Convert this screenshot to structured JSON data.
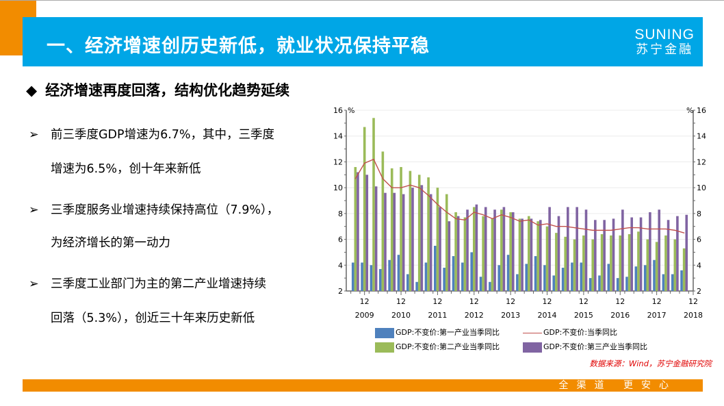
{
  "header": {
    "title": "一、经济增速创历史新低，就业状况保持平稳",
    "logo_en": "SUNING",
    "logo_cn": "苏宁金融"
  },
  "section_heading": "经济增速再度回落，结构优化趋势延续",
  "bullets": [
    {
      "line1": "前三季度GDP增速为6.7%，其中，三季度",
      "line2": "增速为6.5%，创十年来新低"
    },
    {
      "line1": "三季度服务业增速持续保持高位（7.9%），",
      "line2": "为经济增长的第一动力"
    },
    {
      "line1": "三季度工业部门为主的第二产业增速持续",
      "line2": "回落（5.3%），创近三十年来历史新低"
    }
  ],
  "icons": {
    "heading": "diamond-bullet-icon",
    "bullets": "arrow-bullet-icon"
  },
  "chart_data": {
    "type": "bar+line",
    "unit_left": "%",
    "unit_right": "%",
    "ylim": [
      2,
      16
    ],
    "yticks": [
      2,
      4,
      6,
      8,
      10,
      12,
      14,
      16
    ],
    "xtick_labels": [
      {
        "month": "12",
        "year": "2009"
      },
      {
        "month": "12",
        "year": "2010"
      },
      {
        "month": "12",
        "year": "2011"
      },
      {
        "month": "12",
        "year": "2012"
      },
      {
        "month": "12",
        "year": "2013"
      },
      {
        "month": "12",
        "year": "2014"
      },
      {
        "month": "12",
        "year": "2015"
      },
      {
        "month": "12",
        "year": "2016"
      },
      {
        "month": "12",
        "year": "2017"
      },
      {
        "month": "12",
        "year": "2018"
      }
    ],
    "x": [
      "2009Q3",
      "2009Q4",
      "2010Q1",
      "2010Q2",
      "2010Q3",
      "2010Q4",
      "2011Q1",
      "2011Q2",
      "2011Q3",
      "2011Q4",
      "2012Q1",
      "2012Q2",
      "2012Q3",
      "2012Q4",
      "2013Q1",
      "2013Q2",
      "2013Q3",
      "2013Q4",
      "2014Q1",
      "2014Q2",
      "2014Q3",
      "2014Q4",
      "2015Q1",
      "2015Q2",
      "2015Q3",
      "2015Q4",
      "2016Q1",
      "2016Q2",
      "2016Q3",
      "2016Q4",
      "2017Q1",
      "2017Q2",
      "2017Q3",
      "2017Q4",
      "2018Q1",
      "2018Q2",
      "2018Q3"
    ],
    "series": [
      {
        "name": "GDP:不变价:第一产业当季同比",
        "kind": "bar",
        "color": "#4f81bd",
        "values": [
          4.2,
          4.2,
          4.0,
          3.7,
          4.4,
          4.8,
          3.3,
          2.7,
          4.2,
          5.5,
          3.8,
          4.7,
          4.2,
          5.0,
          3.1,
          2.7,
          4.0,
          4.8,
          3.3,
          4.1,
          4.7,
          4.0,
          3.2,
          3.8,
          4.2,
          4.2,
          3.0,
          3.2,
          4.1,
          3.0,
          3.1,
          3.9,
          4.0,
          4.4,
          3.3,
          3.3,
          3.6
        ]
      },
      {
        "name": "GDP:不变价:第二产业当季同比",
        "kind": "bar",
        "color": "#9bbb59",
        "values": [
          11.6,
          14.7,
          15.4,
          12.8,
          11.5,
          11.6,
          11.3,
          11.0,
          10.8,
          10.0,
          9.5,
          8.1,
          7.7,
          8.5,
          7.8,
          7.6,
          8.3,
          8.1,
          7.6,
          7.8,
          7.4,
          7.0,
          6.5,
          6.2,
          6.0,
          6.3,
          6.0,
          6.4,
          6.3,
          6.3,
          6.4,
          6.6,
          6.0,
          5.8,
          6.3,
          6.0,
          5.3
        ]
      },
      {
        "name": "GDP:不变价:第三产业当季同比",
        "kind": "bar",
        "color": "#8064a2",
        "values": [
          11.2,
          11.0,
          10.1,
          9.6,
          9.6,
          9.5,
          10.0,
          10.2,
          9.5,
          8.5,
          7.4,
          7.8,
          8.3,
          8.7,
          8.5,
          8.3,
          8.5,
          8.1,
          7.6,
          7.6,
          7.5,
          8.5,
          7.8,
          8.5,
          8.5,
          8.3,
          7.5,
          7.5,
          7.6,
          8.3,
          7.7,
          7.7,
          8.1,
          8.3,
          7.5,
          7.8,
          7.9
        ]
      },
      {
        "name": "GDP:不变价:当季同比",
        "kind": "line",
        "color": "#c0504d",
        "values": [
          10.7,
          11.9,
          12.2,
          10.7,
          10.0,
          10.0,
          10.2,
          10.0,
          9.4,
          8.7,
          8.1,
          7.6,
          7.5,
          8.1,
          7.9,
          7.6,
          7.9,
          7.7,
          7.4,
          7.5,
          7.1,
          7.2,
          7.0,
          7.0,
          6.9,
          6.8,
          6.7,
          6.7,
          6.7,
          6.8,
          6.9,
          6.9,
          6.8,
          6.8,
          6.8,
          6.7,
          6.5
        ]
      }
    ]
  },
  "source": "数据来源：Wind，苏宁金融研究院",
  "footer": {
    "slogan": "全渠道  更安心"
  }
}
